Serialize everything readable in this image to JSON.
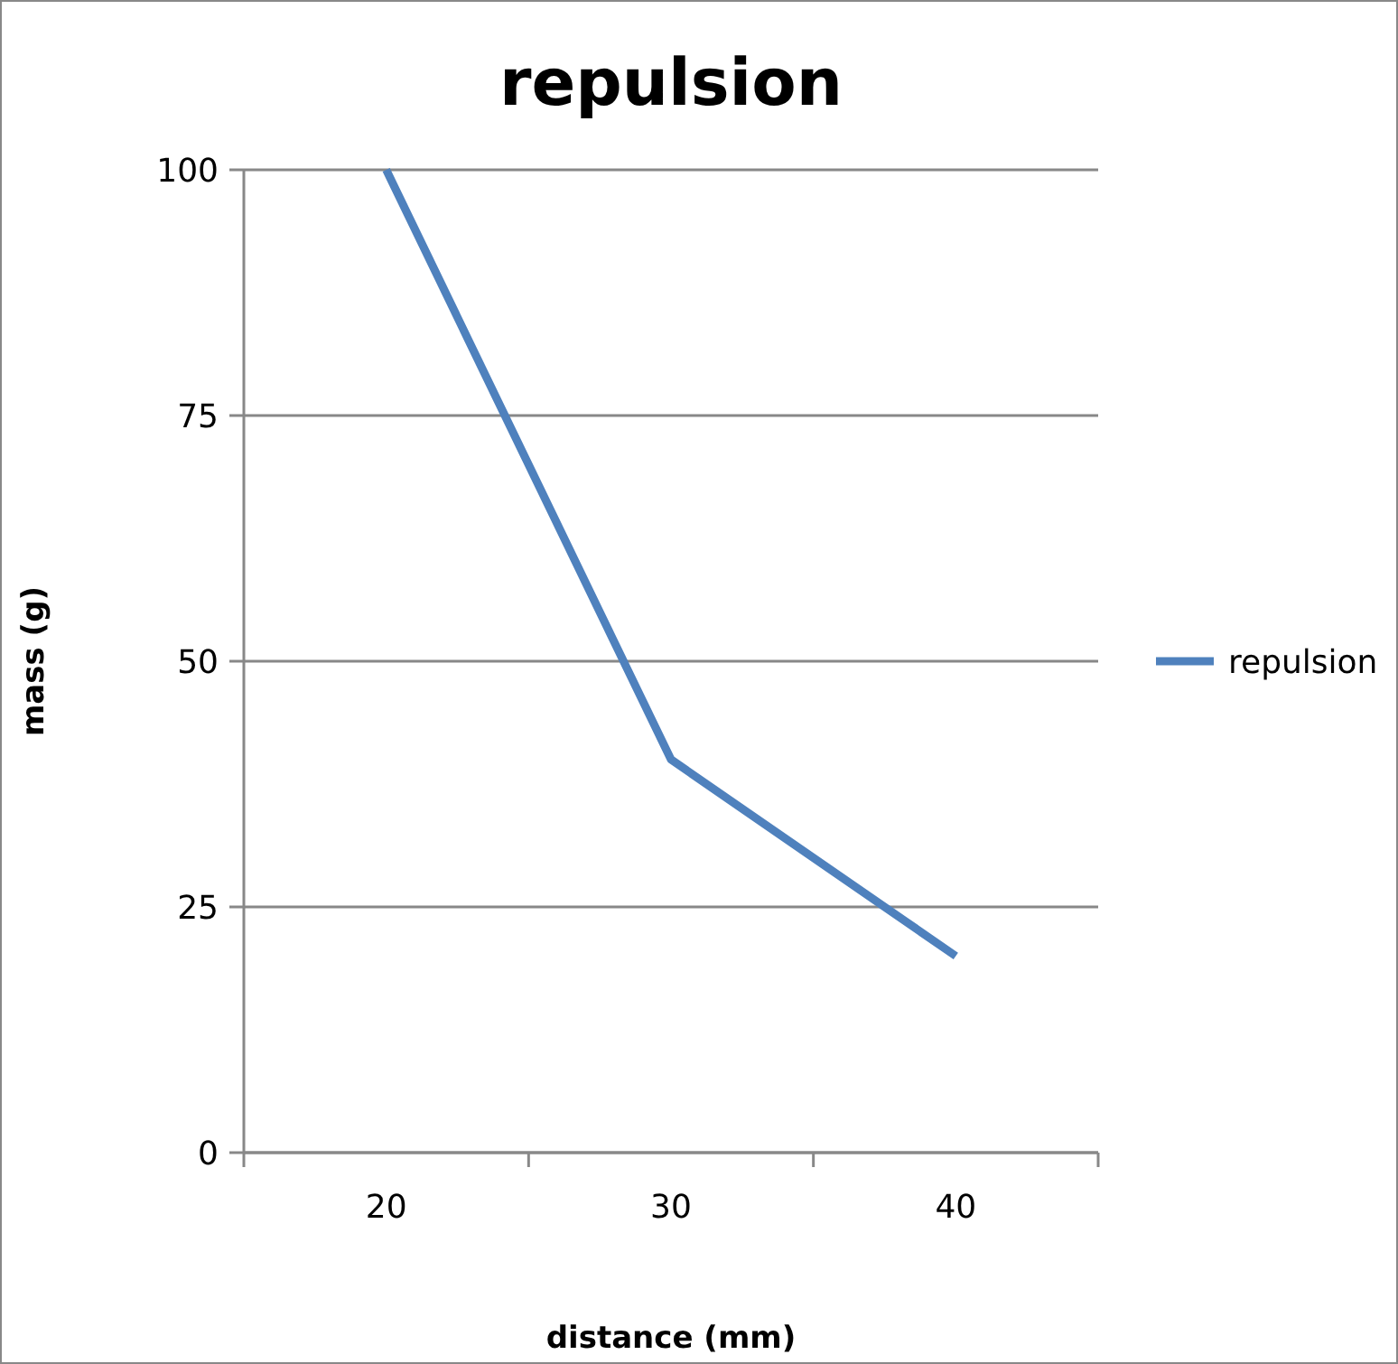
{
  "chart_data": {
    "type": "line",
    "title": "repulsion",
    "xlabel": "distance (mm)",
    "ylabel": "mass (g)",
    "categories": [
      "20",
      "30",
      "40"
    ],
    "series": [
      {
        "name": "repulsion",
        "color": "#4f81bd",
        "values": [
          100,
          40,
          20
        ]
      }
    ],
    "ylim": [
      0,
      100
    ],
    "yticks": [
      0,
      25,
      50,
      75,
      100
    ],
    "grid": "y",
    "legend": "right",
    "marker": "none",
    "line_style": "solid"
  }
}
